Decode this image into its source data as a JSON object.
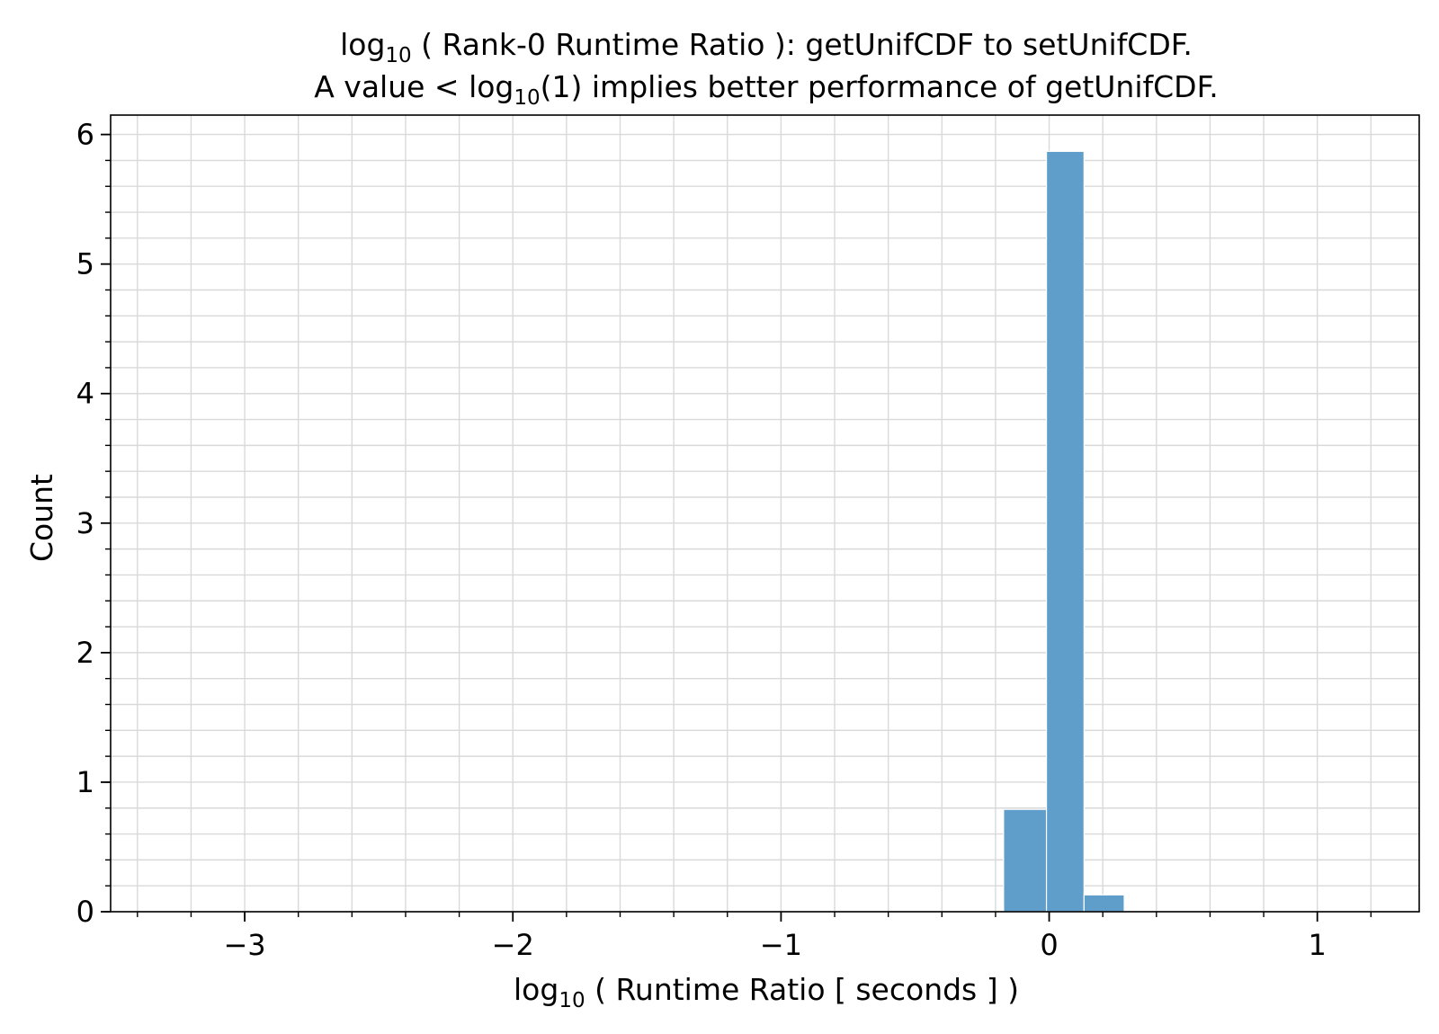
{
  "chart_data": {
    "type": "bar",
    "title": {
      "line1": {
        "pre": "log",
        "sub": "10",
        "post": " ( Rank-0 Runtime Ratio ): getUnifCDF to setUnifCDF."
      },
      "line2": {
        "pre": "A value < log",
        "sub": "10",
        "post": "(1) implies better performance of getUnifCDF."
      }
    },
    "xlabel": {
      "pre": "log",
      "sub": "10",
      "post": " ( Runtime Ratio [ seconds ] )"
    },
    "ylabel": "Count",
    "xlim": [
      -3.5,
      1.38
    ],
    "ylim": [
      0,
      6.15
    ],
    "xticks": [
      {
        "value": -3,
        "label": "−3"
      },
      {
        "value": -2,
        "label": "−2"
      },
      {
        "value": -1,
        "label": "−1"
      },
      {
        "value": 0,
        "label": "0"
      },
      {
        "value": 1,
        "label": "1"
      }
    ],
    "yticks": [
      {
        "value": 0,
        "label": "0"
      },
      {
        "value": 1,
        "label": "1"
      },
      {
        "value": 2,
        "label": "2"
      },
      {
        "value": 3,
        "label": "3"
      },
      {
        "value": 4,
        "label": "4"
      },
      {
        "value": 5,
        "label": "5"
      },
      {
        "value": 6,
        "label": "6"
      }
    ],
    "x_minor_step": 0.2,
    "y_minor_step": 0.2,
    "grid": true,
    "bins": [
      {
        "x0": -0.17,
        "x1": -0.01,
        "value": 0.79
      },
      {
        "x0": -0.01,
        "x1": 0.13,
        "value": 5.87
      },
      {
        "x0": 0.13,
        "x1": 0.28,
        "value": 0.13
      }
    ],
    "colors": {
      "bar": "#5f9ecb",
      "grid": "#d9d9d9",
      "axis": "#000000",
      "bar_edge": "#ffffff"
    }
  }
}
